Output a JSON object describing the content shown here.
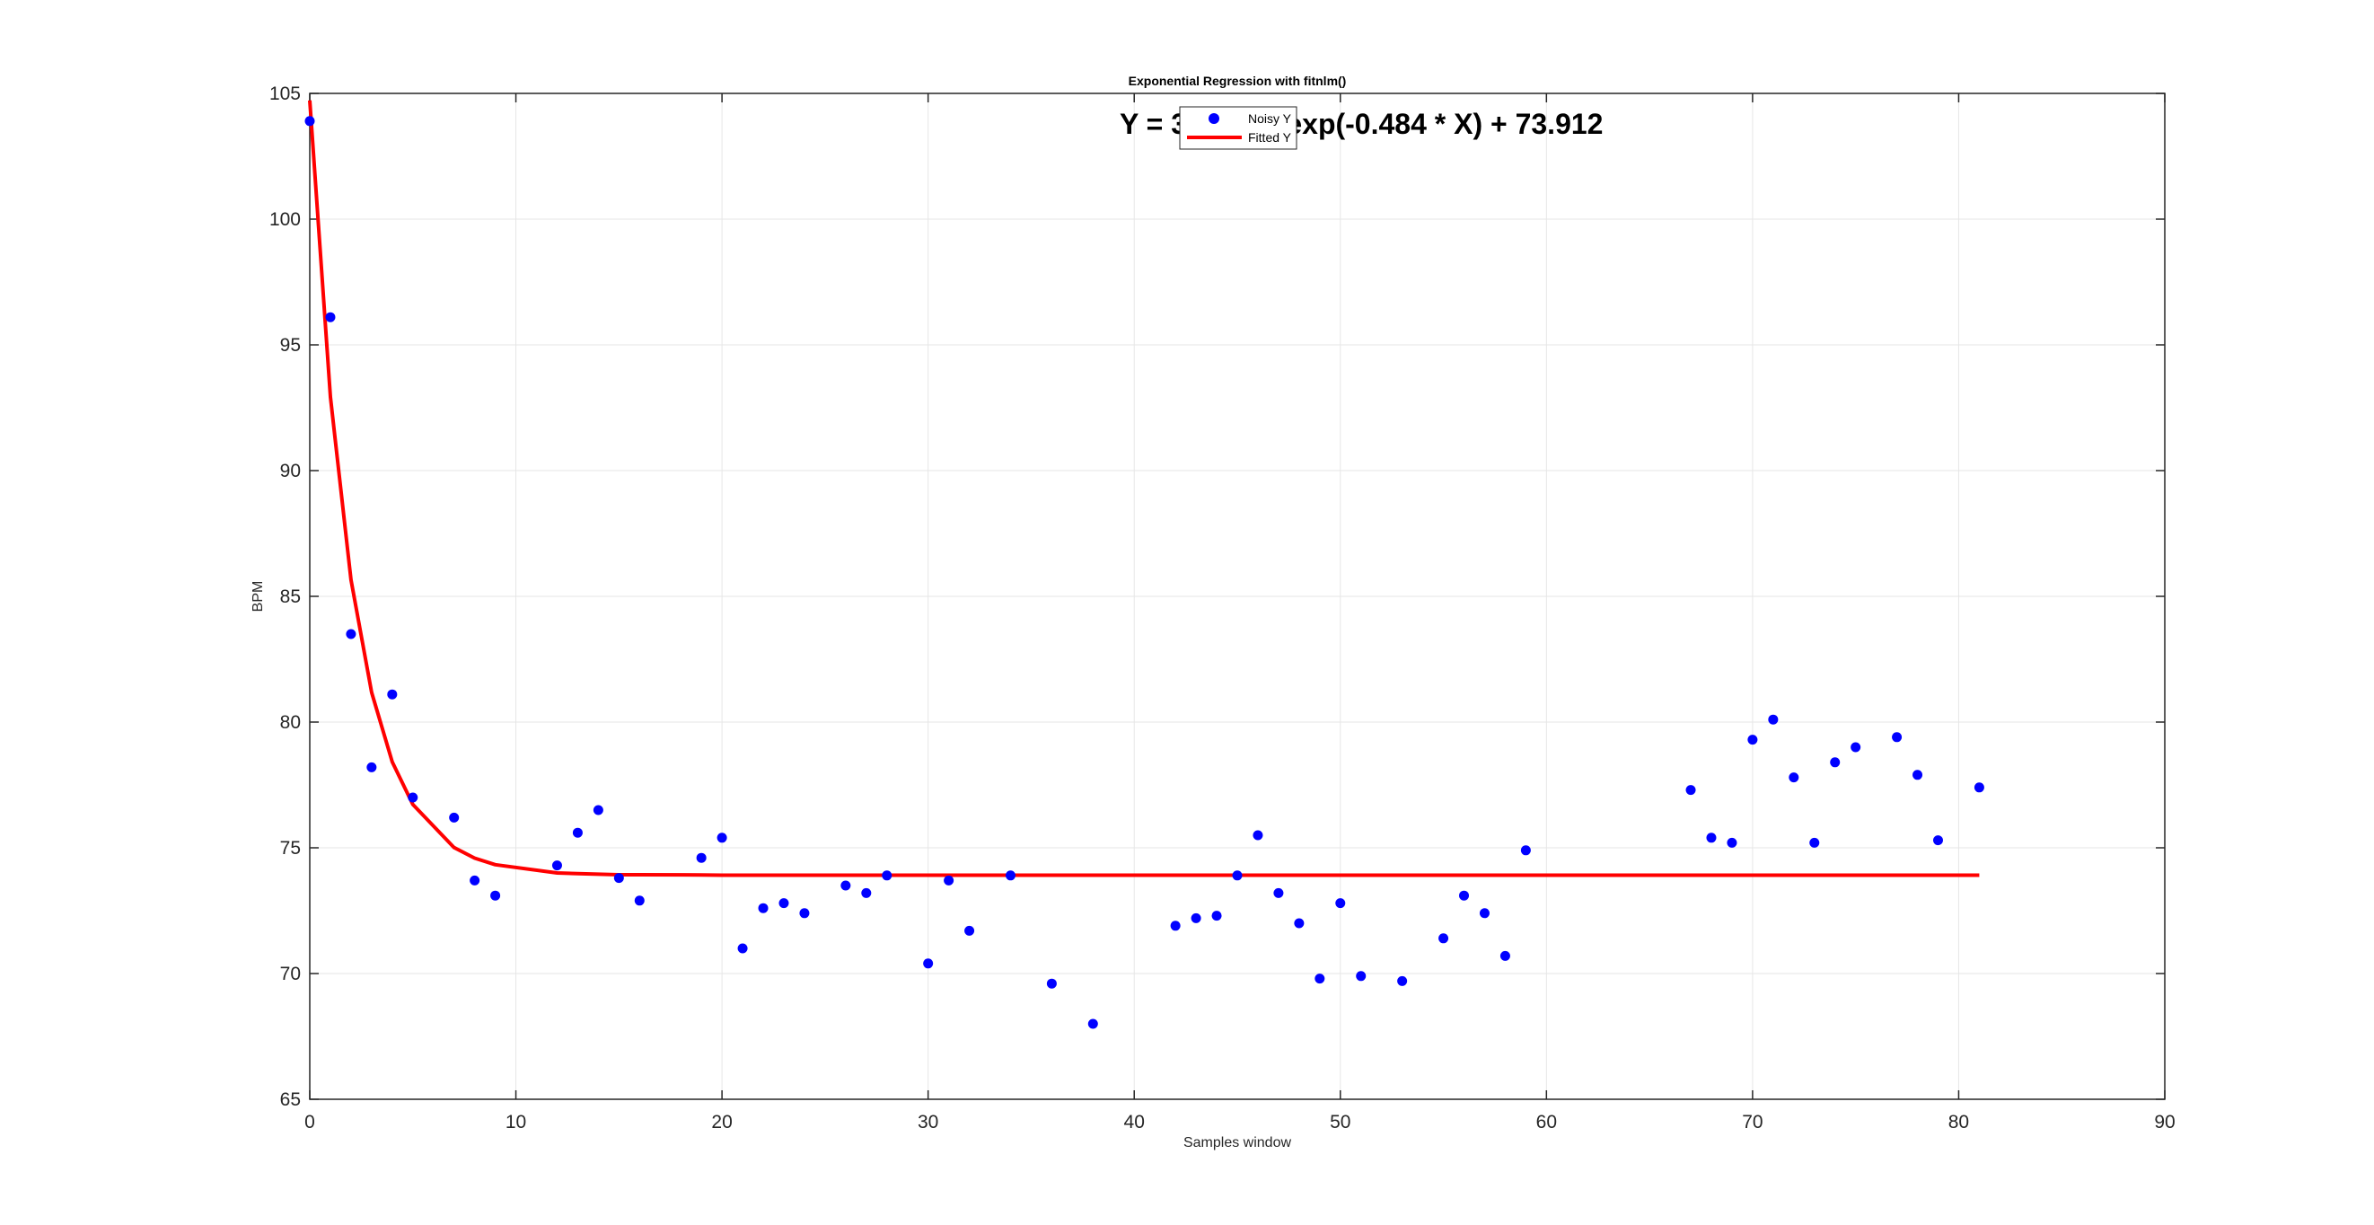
{
  "chart_data": {
    "type": "scatter",
    "title": "Exponential Regression with fitnlm()",
    "xlabel": "Samples window",
    "ylabel": "BPM",
    "xlim": [
      0,
      90
    ],
    "ylim": [
      65,
      105
    ],
    "xticks": [
      "0",
      "10",
      "20",
      "30",
      "40",
      "50",
      "60",
      "70",
      "80",
      "90"
    ],
    "yticks": [
      "65",
      "70",
      "75",
      "80",
      "85",
      "90",
      "95",
      "100",
      "105"
    ],
    "grid": true,
    "legend_placement": "top-center",
    "annotation": "Y = 30.806 * exp(-0.484 * X) + 73.912",
    "colors": {
      "noisy": "#0000ff",
      "fitted": "#ff0000"
    },
    "series": [
      {
        "name": "Noisy Y",
        "style": "markers",
        "x": [
          0,
          1,
          2,
          3,
          4,
          5,
          7,
          8,
          9,
          12,
          13,
          14,
          15,
          16,
          19,
          20,
          21,
          22,
          23,
          24,
          26,
          27,
          28,
          30,
          31,
          32,
          34,
          36,
          38,
          42,
          43,
          44,
          45,
          46,
          47,
          48,
          49,
          50,
          51,
          53,
          55,
          56,
          57,
          58,
          59,
          67,
          68,
          69,
          70,
          71,
          72,
          73,
          74,
          75,
          77,
          78,
          79,
          81
        ],
        "y": [
          103.9,
          96.1,
          83.5,
          78.2,
          81.1,
          77.0,
          76.2,
          73.7,
          73.1,
          74.3,
          75.6,
          76.5,
          73.8,
          72.9,
          74.6,
          75.4,
          71.0,
          72.6,
          72.8,
          72.4,
          73.5,
          73.2,
          73.9,
          70.4,
          73.7,
          71.7,
          73.9,
          69.6,
          68.0,
          71.9,
          72.2,
          72.3,
          73.9,
          75.5,
          73.2,
          72.0,
          69.8,
          72.8,
          69.9,
          69.7,
          71.4,
          73.1,
          72.4,
          70.7,
          74.9,
          77.3,
          75.4,
          75.2,
          79.3,
          80.1,
          77.8,
          75.2,
          78.4,
          79.0,
          79.4,
          77.9,
          75.3,
          77.4
        ]
      },
      {
        "name": "Fitted Y",
        "style": "line",
        "x": [
          0,
          1,
          2,
          3,
          4,
          5,
          7,
          8,
          9,
          12,
          13,
          14,
          15,
          16,
          19,
          20,
          21,
          22,
          23,
          24,
          26,
          27,
          28,
          30,
          31,
          32,
          34,
          36,
          38,
          42,
          43,
          44,
          45,
          46,
          47,
          48,
          49,
          50,
          51,
          53,
          55,
          56,
          57,
          58,
          59,
          67,
          68,
          69,
          70,
          71,
          72,
          73,
          74,
          75,
          77,
          78,
          79,
          81
        ],
        "y": [
          104.72,
          92.93,
          85.66,
          81.18,
          78.42,
          76.72,
          75.01,
          74.59,
          74.33,
          74.0,
          73.97,
          73.95,
          73.93,
          73.93,
          73.92,
          73.91,
          73.91,
          73.91,
          73.91,
          73.91,
          73.91,
          73.91,
          73.91,
          73.91,
          73.91,
          73.91,
          73.91,
          73.91,
          73.91,
          73.91,
          73.91,
          73.91,
          73.91,
          73.91,
          73.91,
          73.91,
          73.91,
          73.91,
          73.91,
          73.91,
          73.91,
          73.91,
          73.91,
          73.91,
          73.91,
          73.91,
          73.91,
          73.91,
          73.91,
          73.91,
          73.91,
          73.91,
          73.91,
          73.91,
          73.91,
          73.91,
          73.91,
          73.91
        ]
      }
    ]
  }
}
